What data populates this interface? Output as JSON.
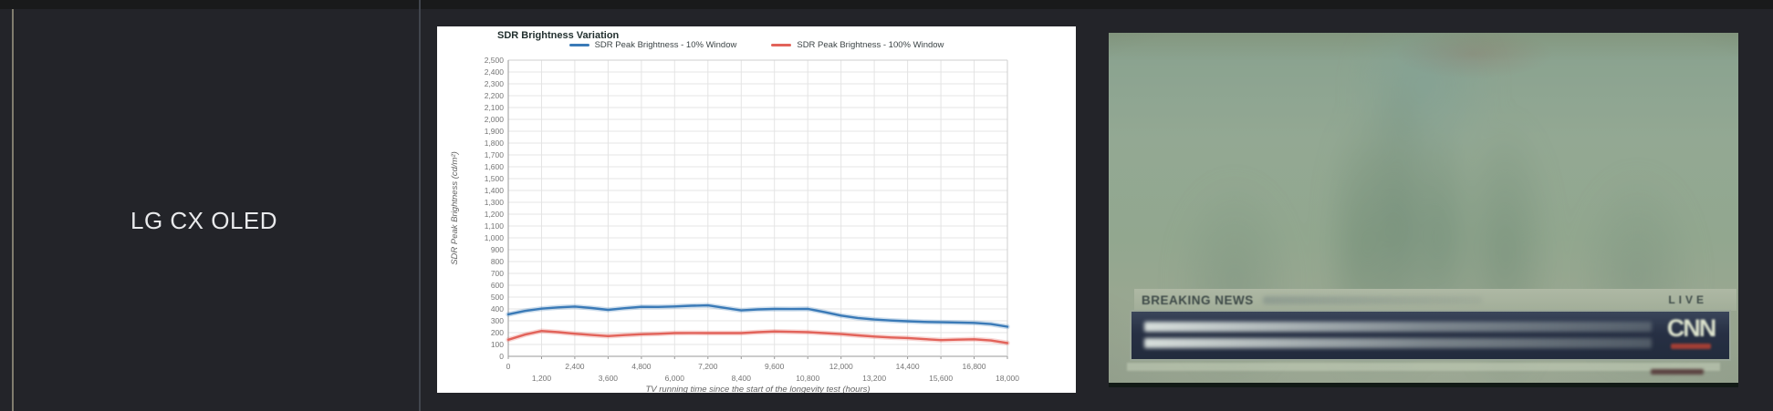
{
  "row": {
    "model": "LG CX OLED"
  },
  "chart": {
    "title": "SDR Brightness Variation",
    "legend": [
      {
        "label": "SDR Peak Brightness - 10% Window",
        "color": "#3a7ab7"
      },
      {
        "label": "SDR Peak Brightness - 100% Window",
        "color": "#e2635a"
      }
    ]
  },
  "chart_data": {
    "type": "line",
    "title": "SDR Brightness Variation",
    "xlabel": "TV running time since the start of the longevity test (hours)",
    "ylabel": "SDR Peak Brightness (cd/m²)",
    "xlim": [
      0,
      18000
    ],
    "ylim": [
      0,
      2500
    ],
    "x_tick_step": 1200,
    "y_tick_step": 100,
    "grid": true,
    "legend_position": "top",
    "x": [
      0,
      600,
      1200,
      1800,
      2400,
      3000,
      3600,
      4200,
      4800,
      5400,
      6000,
      6600,
      7200,
      7800,
      8400,
      9000,
      9600,
      10200,
      10800,
      11400,
      12000,
      12600,
      13200,
      13800,
      14400,
      15000,
      15600,
      16200,
      16800,
      17400,
      18000
    ],
    "series": [
      {
        "name": "SDR Peak Brightness - 10% Window",
        "color": "#3a7ab7",
        "values": [
          355,
          383,
          402,
          413,
          420,
          408,
          392,
          406,
          418,
          417,
          421,
          427,
          430,
          409,
          388,
          396,
          400,
          399,
          401,
          374,
          344,
          324,
          311,
          302,
          296,
          291,
          288,
          285,
          282,
          272,
          250
        ]
      },
      {
        "name": "SDR Peak Brightness - 100% Window",
        "color": "#e2635a",
        "values": [
          140,
          183,
          214,
          204,
          191,
          180,
          171,
          179,
          186,
          190,
          196,
          197,
          196,
          196,
          196,
          204,
          210,
          207,
          204,
          196,
          188,
          177,
          167,
          159,
          155,
          145,
          137,
          141,
          144,
          134,
          112
        ]
      }
    ]
  },
  "tv_photo": {
    "banner_label": "BREAKING NEWS",
    "live_label": "LIVE",
    "logo": "CNN"
  }
}
